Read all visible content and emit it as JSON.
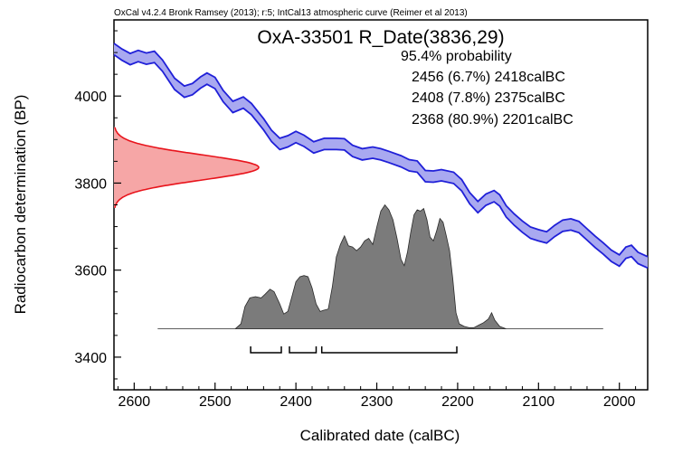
{
  "chart_data": {
    "type": "area",
    "credit": "OxCal v4.2.4 Bronk Ramsey (2013); r:5; IntCal13 atmospheric curve (Reimer et al 2013)",
    "title": "OxA-33501 R_Date(3836,29)",
    "xlabel": "Calibrated date (calBC)",
    "ylabel": "Radiocarbon determination (BP)",
    "xlim": [
      2625,
      1965
    ],
    "ylim": [
      3325,
      4175
    ],
    "x_ticks": [
      2600,
      2500,
      2400,
      2300,
      2200,
      2100,
      2000
    ],
    "y_ticks": [
      3400,
      3600,
      3800,
      4000
    ],
    "probability_label": "95.4% probability",
    "ranges": [
      {
        "from": 2456,
        "to": 2418,
        "percent": 6.7,
        "label": "2456 (6.7%) 2418calBC"
      },
      {
        "from": 2408,
        "to": 2375,
        "percent": 7.8,
        "label": "2408 (7.8%) 2375calBC"
      },
      {
        "from": 2368,
        "to": 2201,
        "percent": 80.9,
        "label": "2368 (80.9%) 2201calBC"
      }
    ],
    "radiocarbon_measurement": {
      "mean_bp": 3836,
      "sigma_bp": 29,
      "color": "#e8141c",
      "fill": "#f6a6a6"
    },
    "calibration_curve": {
      "name": "IntCal13",
      "color": "#1f1fd8",
      "fill": "#a9a9f0",
      "half_width_bp": 13,
      "points": [
        [
          2625,
          4108
        ],
        [
          2615,
          4095
        ],
        [
          2605,
          4085
        ],
        [
          2595,
          4092
        ],
        [
          2585,
          4086
        ],
        [
          2575,
          4090
        ],
        [
          2565,
          4070
        ],
        [
          2550,
          4028
        ],
        [
          2538,
          4010
        ],
        [
          2528,
          4016
        ],
        [
          2518,
          4031
        ],
        [
          2510,
          4040
        ],
        [
          2500,
          4030
        ],
        [
          2490,
          4000
        ],
        [
          2478,
          3975
        ],
        [
          2465,
          3985
        ],
        [
          2455,
          3970
        ],
        [
          2440,
          3935
        ],
        [
          2430,
          3908
        ],
        [
          2420,
          3890
        ],
        [
          2410,
          3896
        ],
        [
          2400,
          3906
        ],
        [
          2390,
          3897
        ],
        [
          2378,
          3882
        ],
        [
          2365,
          3890
        ],
        [
          2350,
          3890
        ],
        [
          2340,
          3889
        ],
        [
          2330,
          3874
        ],
        [
          2318,
          3866
        ],
        [
          2305,
          3870
        ],
        [
          2295,
          3866
        ],
        [
          2285,
          3860
        ],
        [
          2270,
          3850
        ],
        [
          2260,
          3841
        ],
        [
          2250,
          3838
        ],
        [
          2240,
          3816
        ],
        [
          2230,
          3815
        ],
        [
          2220,
          3818
        ],
        [
          2205,
          3812
        ],
        [
          2195,
          3795
        ],
        [
          2185,
          3765
        ],
        [
          2175,
          3745
        ],
        [
          2165,
          3762
        ],
        [
          2155,
          3770
        ],
        [
          2148,
          3760
        ],
        [
          2140,
          3735
        ],
        [
          2130,
          3716
        ],
        [
          2120,
          3700
        ],
        [
          2110,
          3686
        ],
        [
          2100,
          3680
        ],
        [
          2090,
          3675
        ],
        [
          2080,
          3690
        ],
        [
          2070,
          3702
        ],
        [
          2060,
          3705
        ],
        [
          2050,
          3699
        ],
        [
          2040,
          3682
        ],
        [
          2030,
          3665
        ],
        [
          2020,
          3650
        ],
        [
          2010,
          3633
        ],
        [
          2000,
          3622
        ],
        [
          1992,
          3640
        ],
        [
          1985,
          3644
        ],
        [
          1977,
          3628
        ],
        [
          1965,
          3618
        ]
      ]
    },
    "calibrated_distribution": {
      "color": "#7b7b7b",
      "outline": "#2a2a2a",
      "baseline_from": 2571,
      "baseline_to": 2020,
      "peak_bp": 3750,
      "points": [
        [
          2571,
          0
        ],
        [
          2475,
          0
        ],
        [
          2468,
          0.04
        ],
        [
          2463,
          0.18
        ],
        [
          2457,
          0.25
        ],
        [
          2450,
          0.26
        ],
        [
          2443,
          0.25
        ],
        [
          2438,
          0.28
        ],
        [
          2432,
          0.32
        ],
        [
          2427,
          0.3
        ],
        [
          2420,
          0.2
        ],
        [
          2415,
          0.12
        ],
        [
          2410,
          0.14
        ],
        [
          2405,
          0.26
        ],
        [
          2400,
          0.38
        ],
        [
          2395,
          0.42
        ],
        [
          2390,
          0.43
        ],
        [
          2385,
          0.42
        ],
        [
          2380,
          0.33
        ],
        [
          2375,
          0.2
        ],
        [
          2370,
          0.14
        ],
        [
          2366,
          0.15
        ],
        [
          2360,
          0.16
        ],
        [
          2355,
          0.34
        ],
        [
          2350,
          0.58
        ],
        [
          2345,
          0.68
        ],
        [
          2340,
          0.75
        ],
        [
          2335,
          0.67
        ],
        [
          2330,
          0.66
        ],
        [
          2325,
          0.63
        ],
        [
          2320,
          0.66
        ],
        [
          2315,
          0.71
        ],
        [
          2310,
          0.73
        ],
        [
          2305,
          0.68
        ],
        [
          2300,
          0.82
        ],
        [
          2295,
          0.95
        ],
        [
          2290,
          1.0
        ],
        [
          2285,
          0.96
        ],
        [
          2280,
          0.88
        ],
        [
          2275,
          0.73
        ],
        [
          2270,
          0.56
        ],
        [
          2266,
          0.51
        ],
        [
          2262,
          0.62
        ],
        [
          2258,
          0.78
        ],
        [
          2254,
          0.92
        ],
        [
          2250,
          0.96
        ],
        [
          2246,
          0.95
        ],
        [
          2242,
          0.97
        ],
        [
          2238,
          0.88
        ],
        [
          2234,
          0.74
        ],
        [
          2230,
          0.71
        ],
        [
          2226,
          0.79
        ],
        [
          2222,
          0.89
        ],
        [
          2218,
          0.86
        ],
        [
          2214,
          0.75
        ],
        [
          2210,
          0.63
        ],
        [
          2206,
          0.4
        ],
        [
          2202,
          0.13
        ],
        [
          2198,
          0.04
        ],
        [
          2192,
          0.02
        ],
        [
          2186,
          0.01
        ],
        [
          2180,
          0.01
        ],
        [
          2174,
          0.03
        ],
        [
          2168,
          0.05
        ],
        [
          2162,
          0.08
        ],
        [
          2158,
          0.13
        ],
        [
          2154,
          0.07
        ],
        [
          2148,
          0.02
        ],
        [
          2140,
          0
        ],
        [
          2020,
          0
        ]
      ]
    }
  }
}
